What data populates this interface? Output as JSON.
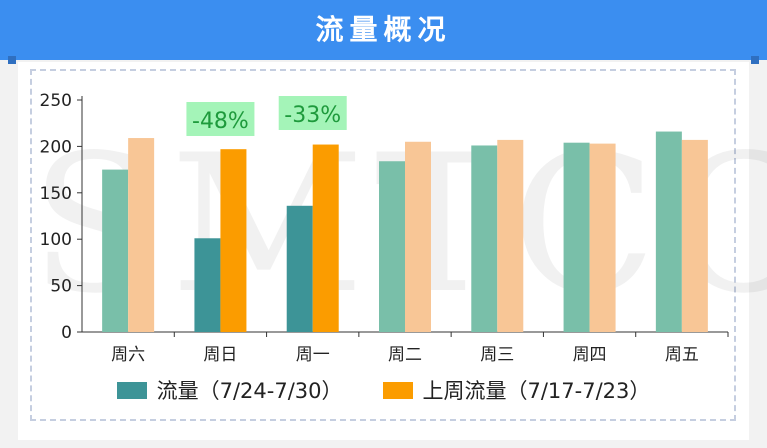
{
  "header": {
    "title": "流量概况"
  },
  "watermark": "SMTCC",
  "colors": {
    "current_highlight": "#3d9497",
    "current_normal": "#79bfa9",
    "previous_highlight": "#fb9c00",
    "previous_normal": "#f8c696",
    "badge_bg": "#a4f4b8",
    "badge_text": "#1e9a3c"
  },
  "chart_data": {
    "type": "bar",
    "categories": [
      "周六",
      "周日",
      "周一",
      "周二",
      "周三",
      "周四",
      "周五"
    ],
    "series": [
      {
        "name": "流量（7/24-7/30）",
        "values": [
          175,
          101,
          136,
          184,
          201,
          204,
          216
        ]
      },
      {
        "name": "上周流量（7/17-7/23）",
        "values": [
          209,
          197,
          202,
          205,
          207,
          203,
          207
        ]
      }
    ],
    "highlight_categories": [
      "周日",
      "周一"
    ],
    "annotations": [
      {
        "category": "周日",
        "text": "-48%"
      },
      {
        "category": "周一",
        "text": "-33%"
      }
    ],
    "yticks": [
      0,
      50,
      100,
      150,
      200,
      250
    ],
    "ylim": [
      0,
      250
    ],
    "grid": false,
    "legend_position": "bottom"
  }
}
